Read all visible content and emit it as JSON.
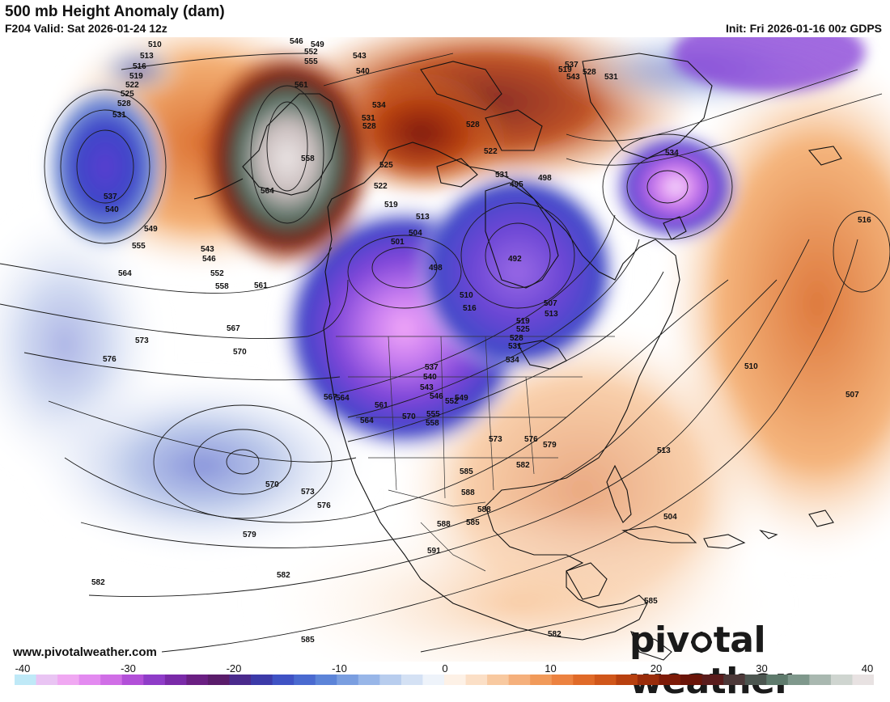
{
  "header": {
    "title": "500 mb Height Anomaly (dam)",
    "valid": "F204 Valid: Sat 2026-01-24 12z",
    "init": "Init: Fri 2026-01-16 00z GDPS"
  },
  "footer": {
    "site": "www.pivotalweather.com",
    "brand_left": "piv",
    "brand_right": "tal weather"
  },
  "colorbar": {
    "ticks": [
      "-40",
      "-30",
      "-20",
      "-10",
      "0",
      "10",
      "20",
      "30",
      "40"
    ],
    "min": -40,
    "max": 40
  },
  "map": {
    "anomaly_centers": [
      {
        "kind": "negative",
        "color": "#5a3fd0",
        "label": "Pacific low west of Alaska"
      },
      {
        "kind": "negative",
        "color": "#c97ef0",
        "label": "Northern Rockies low"
      },
      {
        "kind": "negative",
        "color": "#8a5fe0",
        "label": "Hudson Bay low"
      },
      {
        "kind": "negative",
        "color": "#d48cf5",
        "label": "Labrador Sea low"
      },
      {
        "kind": "positive",
        "color": "#e8e0e0",
        "label": "Alaska ridge"
      },
      {
        "kind": "positive",
        "color": "#d46a20",
        "label": "Atlantic ridge"
      }
    ],
    "contour_labels": [
      {
        "text": "510"
      },
      {
        "text": "513"
      },
      {
        "text": "516"
      },
      {
        "text": "519"
      },
      {
        "text": "522"
      },
      {
        "text": "525"
      },
      {
        "text": "528"
      },
      {
        "text": "531"
      },
      {
        "text": "537"
      },
      {
        "text": "540"
      },
      {
        "text": "549"
      },
      {
        "text": "555"
      },
      {
        "text": "564"
      },
      {
        "text": "543"
      },
      {
        "text": "546"
      },
      {
        "text": "552"
      },
      {
        "text": "558"
      },
      {
        "text": "561"
      },
      {
        "text": "567"
      },
      {
        "text": "573"
      },
      {
        "text": "570"
      },
      {
        "text": "576"
      },
      {
        "text": "564"
      },
      {
        "text": "570"
      },
      {
        "text": "573"
      },
      {
        "text": "576"
      },
      {
        "text": "579"
      },
      {
        "text": "582"
      },
      {
        "text": "582"
      },
      {
        "text": "585"
      },
      {
        "text": "546"
      },
      {
        "text": "549"
      },
      {
        "text": "552"
      },
      {
        "text": "555"
      },
      {
        "text": "561"
      },
      {
        "text": "558"
      },
      {
        "text": "564"
      },
      {
        "text": "543"
      },
      {
        "text": "540"
      },
      {
        "text": "534"
      },
      {
        "text": "531"
      },
      {
        "text": "528"
      },
      {
        "text": "525"
      },
      {
        "text": "522"
      },
      {
        "text": "519"
      },
      {
        "text": "513"
      },
      {
        "text": "504"
      },
      {
        "text": "501"
      },
      {
        "text": "498"
      },
      {
        "text": "510"
      },
      {
        "text": "516"
      },
      {
        "text": "495"
      },
      {
        "text": "498"
      },
      {
        "text": "492"
      },
      {
        "text": "507"
      },
      {
        "text": "513"
      },
      {
        "text": "519"
      },
      {
        "text": "525"
      },
      {
        "text": "528"
      },
      {
        "text": "531"
      },
      {
        "text": "534"
      },
      {
        "text": "537"
      },
      {
        "text": "540"
      },
      {
        "text": "543"
      },
      {
        "text": "546"
      },
      {
        "text": "549"
      },
      {
        "text": "552"
      },
      {
        "text": "555"
      },
      {
        "text": "558"
      },
      {
        "text": "561"
      },
      {
        "text": "564"
      },
      {
        "text": "567"
      },
      {
        "text": "570"
      },
      {
        "text": "573"
      },
      {
        "text": "576"
      },
      {
        "text": "579"
      },
      {
        "text": "582"
      },
      {
        "text": "585"
      },
      {
        "text": "588"
      },
      {
        "text": "588"
      },
      {
        "text": "585"
      },
      {
        "text": "588"
      },
      {
        "text": "591"
      },
      {
        "text": "585"
      },
      {
        "text": "582"
      },
      {
        "text": "510"
      },
      {
        "text": "507"
      },
      {
        "text": "516"
      },
      {
        "text": "513"
      },
      {
        "text": "504"
      },
      {
        "text": "519"
      },
      {
        "text": "528"
      },
      {
        "text": "522"
      },
      {
        "text": "531"
      },
      {
        "text": "534"
      },
      {
        "text": "537"
      },
      {
        "text": "543"
      },
      {
        "text": "528"
      },
      {
        "text": "531"
      }
    ]
  }
}
